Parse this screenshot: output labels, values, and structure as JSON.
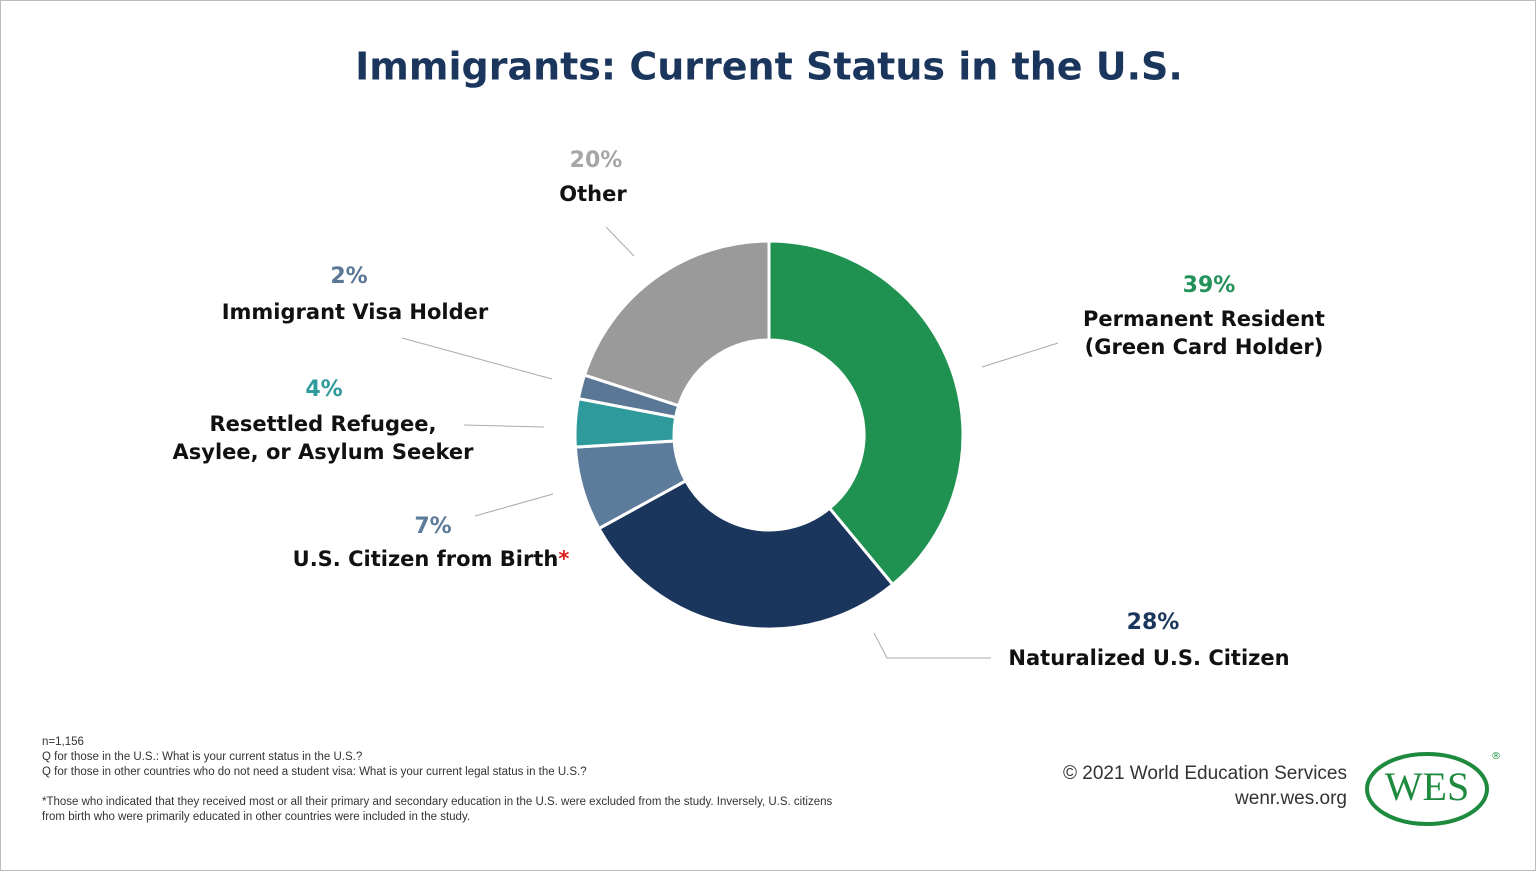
{
  "chart_data": {
    "type": "donut",
    "title": "Immigrants: Current Status in the U.S.",
    "categories": [
      "Permanent Resident (Green Card Holder)",
      "Naturalized U.S. Citizen",
      "U.S. Citizen from Birth",
      "Resettled Refugee, Asylee, or Asylum Seeker",
      "Immigrant Visa Holder",
      "Other"
    ],
    "values": [
      39,
      28,
      7,
      4,
      2,
      20
    ],
    "value_labels": [
      "39%",
      "28%",
      "7%",
      "4%",
      "2%",
      "20%"
    ],
    "colors": [
      "#1f9150",
      "#1b365d",
      "#5d7b9a",
      "#2e9a9c",
      "#5a7896",
      "#9a9a9a"
    ],
    "footnote_mark": "*",
    "notes": [
      "n=1,156",
      "Q for those in the U.S.: What is your current status in the U.S.?",
      "Q for those in other countries who do not need a student visa: What is your current legal status in the U.S.?",
      "*Those who indicated that they received most or all their primary and secondary education in the U.S. were excluded from the study. Inversely, U.S. citizens from birth who were primarily educated in other countries were included in the study."
    ]
  },
  "credit": {
    "copyright": "© 2021 World Education Services",
    "url": "wenr.wes.org",
    "logo": "WES",
    "logo_mark": "®"
  }
}
